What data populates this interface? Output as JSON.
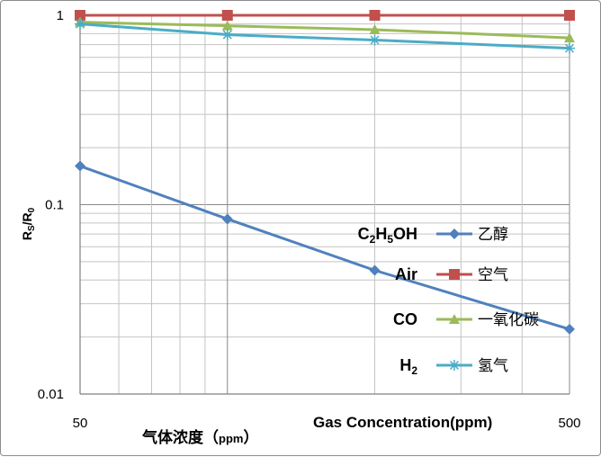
{
  "chart_data": {
    "type": "line",
    "x_scale": "log",
    "y_scale": "log",
    "xlim": [
      50,
      500
    ],
    "ylim": [
      0.01,
      1
    ],
    "x_ticks": [
      "50",
      "500"
    ],
    "y_ticks": [
      "0.01",
      "0.1",
      "1"
    ],
    "ylabel": {
      "main": "R",
      "sub1": "S",
      "sep": "/R",
      "sub2": "0"
    },
    "xlabel_cn": {
      "main": "气体浓度（",
      "unit": "ppm",
      "close": "）"
    },
    "xlabel_en": "Gas Concentration(ppm)",
    "grid": true,
    "legend_position": "center-right",
    "x": [
      50,
      100,
      200,
      500
    ],
    "series": [
      {
        "name": "乙醇",
        "head": [
          {
            "t": "C",
            "s": false
          },
          {
            "t": "2",
            "s": true
          },
          {
            "t": "H",
            "s": false
          },
          {
            "t": "5",
            "s": true
          },
          {
            "t": "OH",
            "s": false
          }
        ],
        "color": "#4f81bd",
        "marker": "diamond",
        "values": [
          0.16,
          0.084,
          0.045,
          0.022
        ]
      },
      {
        "name": "空气",
        "head": [
          {
            "t": "Air",
            "s": false
          }
        ],
        "color": "#c0504d",
        "marker": "square",
        "values": [
          1.0,
          1.0,
          1.0,
          1.0
        ]
      },
      {
        "name": "一氧化碳",
        "head": [
          {
            "t": "CO",
            "s": false
          }
        ],
        "color": "#9bbb59",
        "marker": "triangle",
        "values": [
          0.92,
          0.88,
          0.84,
          0.76
        ]
      },
      {
        "name": "氢气",
        "head": [
          {
            "t": "H",
            "s": false
          },
          {
            "t": "2",
            "s": true
          }
        ],
        "color": "#4bacc6",
        "marker": "star",
        "values": [
          0.9,
          0.79,
          0.74,
          0.67
        ]
      }
    ]
  }
}
